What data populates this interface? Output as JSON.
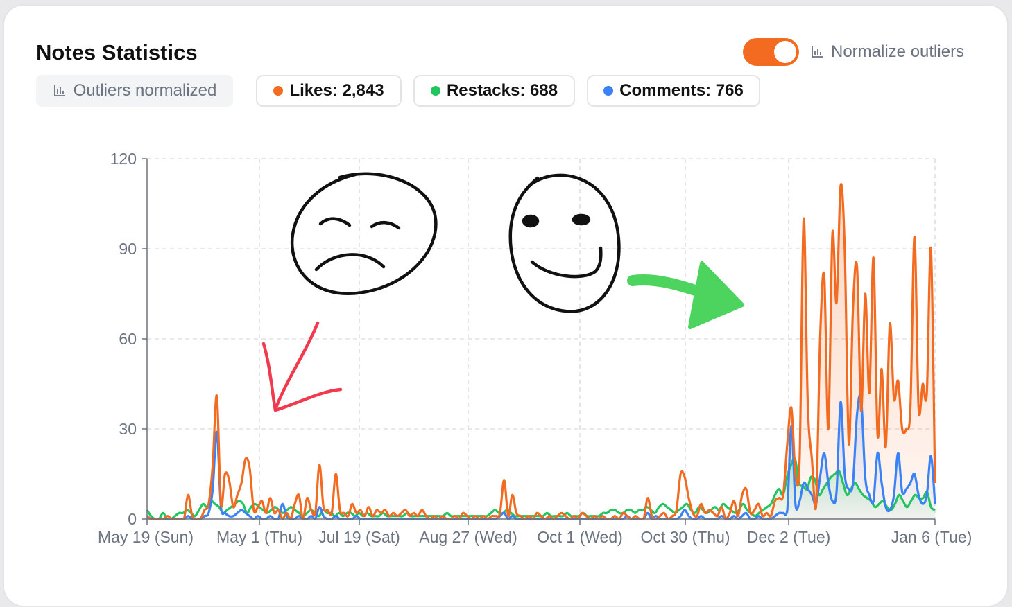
{
  "card": {
    "title": "Notes Statistics",
    "normalize_toggle_on": true,
    "normalize_label": "Normalize outliers",
    "status_badge": "Outliers normalized"
  },
  "colors": {
    "likes": "#f26b21",
    "restacks": "#22c55e",
    "comments": "#3b82f6",
    "toggle": "#f26b21"
  },
  "stats": [
    {
      "label": "Likes: 2,843",
      "color": "#f26b21"
    },
    {
      "label": "Restacks: 688",
      "color": "#22c55e"
    },
    {
      "label": "Comments: 766",
      "color": "#3b82f6"
    }
  ],
  "chart_data": {
    "type": "area",
    "ylim": [
      0,
      120
    ],
    "y_ticks": [
      0,
      30,
      60,
      90,
      120
    ],
    "grid": true,
    "x_tick_labels": [
      "May 19 (Sun)",
      "May 1 (Thu)",
      "Jul 19 (Sat)",
      "Aug 27 (Wed)",
      "Oct 1 (Wed)",
      "Oct 30 (Thu)",
      "Dec 2 (Tue)",
      "Jan 6 (Tue)"
    ],
    "series": [
      {
        "name": "Likes",
        "color": "#f26b21",
        "values": [
          1,
          0,
          0,
          0,
          0,
          1,
          0,
          0,
          0,
          0,
          8,
          1,
          0,
          0,
          3,
          5,
          18,
          41,
          5,
          15,
          13,
          4,
          8,
          12,
          20,
          17,
          3,
          4,
          6,
          2,
          7,
          2,
          3,
          0,
          2,
          0,
          5,
          8,
          0,
          7,
          3,
          2,
          18,
          4,
          3,
          2,
          15,
          3,
          2,
          1,
          5,
          2,
          3,
          1,
          4,
          1,
          3,
          2,
          3,
          1,
          2,
          1,
          2,
          3,
          1,
          2,
          1,
          3,
          1,
          0,
          1,
          0,
          1,
          0,
          0,
          1,
          0,
          2,
          1,
          0,
          1,
          0,
          1,
          0,
          1,
          1,
          2,
          13,
          1,
          8,
          2,
          1,
          0,
          1,
          0,
          2,
          1,
          0,
          1,
          0,
          1,
          2,
          1,
          0,
          1,
          0,
          2,
          1,
          0,
          1,
          0,
          1,
          0,
          0,
          1,
          0,
          2,
          1,
          0,
          1,
          0,
          0,
          7,
          1,
          0,
          1,
          2,
          0,
          1,
          3,
          15,
          14,
          7,
          2,
          1,
          5,
          2,
          3,
          2,
          1,
          4,
          0,
          2,
          6,
          1,
          8,
          10,
          2,
          3,
          5,
          1,
          2,
          1,
          6,
          7,
          8,
          25,
          37,
          15,
          20,
          100,
          38,
          20,
          4,
          60,
          81,
          30,
          95,
          72,
          111,
          90,
          25,
          70,
          84,
          36,
          75,
          42,
          87,
          28,
          50,
          24,
          65,
          40,
          46,
          30,
          30,
          37,
          94,
          37,
          45,
          42,
          90,
          12
        ],
        "fill": true
      },
      {
        "name": "Restacks",
        "color": "#22c55e",
        "values": [
          3,
          1,
          0,
          0,
          2,
          0,
          0,
          1,
          2,
          2,
          3,
          2,
          1,
          3,
          5,
          4,
          6,
          5,
          4,
          2,
          3,
          4,
          5,
          6,
          5,
          2,
          4,
          5,
          4,
          3,
          2,
          3,
          4,
          3,
          2,
          3,
          4,
          3,
          2,
          1,
          2,
          3,
          2,
          1,
          3,
          2,
          2,
          1,
          2,
          1,
          2,
          2,
          1,
          2,
          1,
          2,
          1,
          1,
          1,
          2,
          1,
          1,
          1,
          1,
          1,
          2,
          1,
          1,
          1,
          1,
          1,
          1,
          1,
          1,
          1,
          2,
          1,
          1,
          1,
          1,
          1,
          1,
          1,
          1,
          1,
          1,
          2,
          3,
          2,
          2,
          3,
          2,
          1,
          1,
          1,
          1,
          1,
          1,
          1,
          1,
          2,
          1,
          1,
          1,
          1,
          2,
          1,
          1,
          1,
          2,
          1,
          1,
          1,
          1,
          2,
          2,
          3,
          3,
          2,
          2,
          3,
          3,
          2,
          3,
          3,
          4,
          3,
          2,
          4,
          5,
          4,
          3,
          2,
          3,
          4,
          5,
          3,
          2,
          4,
          3,
          2,
          3,
          4,
          3,
          5,
          4,
          3,
          2,
          3,
          5,
          3,
          2,
          1,
          2,
          3,
          4,
          5,
          8,
          10,
          8,
          14,
          18,
          20,
          12,
          11,
          10,
          14,
          13,
          8,
          10,
          12,
          14,
          15,
          16,
          12,
          8,
          10,
          12,
          10,
          8,
          7,
          6,
          4,
          5,
          6,
          4,
          3,
          5,
          8,
          6,
          4,
          6,
          8,
          7,
          7,
          9,
          4,
          3
        ],
        "fill": true
      },
      {
        "name": "Comments",
        "color": "#3b82f6",
        "values": [
          1,
          0,
          0,
          0,
          0,
          0,
          0,
          0,
          0,
          0,
          1,
          0,
          0,
          0,
          1,
          2,
          10,
          29,
          4,
          2,
          1,
          1,
          2,
          3,
          2,
          1,
          0,
          1,
          0,
          0,
          1,
          0,
          0,
          5,
          1,
          0,
          0,
          1,
          0,
          0,
          1,
          0,
          4,
          1,
          0,
          0,
          1,
          0,
          0,
          0,
          0,
          1,
          0,
          0,
          0,
          0,
          0,
          0,
          0,
          0,
          0,
          0,
          0,
          0,
          0,
          0,
          0,
          0,
          0,
          0,
          0,
          0,
          0,
          0,
          0,
          0,
          0,
          0,
          0,
          0,
          0,
          0,
          0,
          0,
          0,
          0,
          1,
          2,
          0,
          1,
          0,
          0,
          0,
          0,
          0,
          0,
          0,
          0,
          0,
          0,
          0,
          0,
          0,
          0,
          0,
          0,
          0,
          0,
          0,
          0,
          0,
          0,
          0,
          0,
          0,
          0,
          0,
          1,
          0,
          0,
          0,
          0,
          2,
          0,
          1,
          0,
          0,
          0,
          0,
          0,
          1,
          3,
          1,
          0,
          0,
          1,
          0,
          0,
          0,
          0,
          1,
          0,
          0,
          1,
          0,
          1,
          2,
          0,
          0,
          1,
          0,
          0,
          0,
          1,
          2,
          2,
          3,
          31,
          5,
          6,
          12,
          10,
          8,
          5,
          14,
          22,
          12,
          6,
          9,
          39,
          15,
          10,
          12,
          35,
          40,
          14,
          8,
          6,
          22,
          12,
          4,
          3,
          8,
          22,
          9,
          10,
          12,
          15,
          8,
          5,
          8,
          21,
          5
        ],
        "fill": true
      }
    ]
  },
  "annotations": [
    {
      "name": "sad-face-doodle",
      "color": "#111111"
    },
    {
      "name": "happy-face-doodle",
      "color": "#111111"
    },
    {
      "name": "red-arrow-doodle",
      "color": "#f03a4e"
    },
    {
      "name": "green-arrow-doodle",
      "color": "#4cd45f"
    }
  ]
}
